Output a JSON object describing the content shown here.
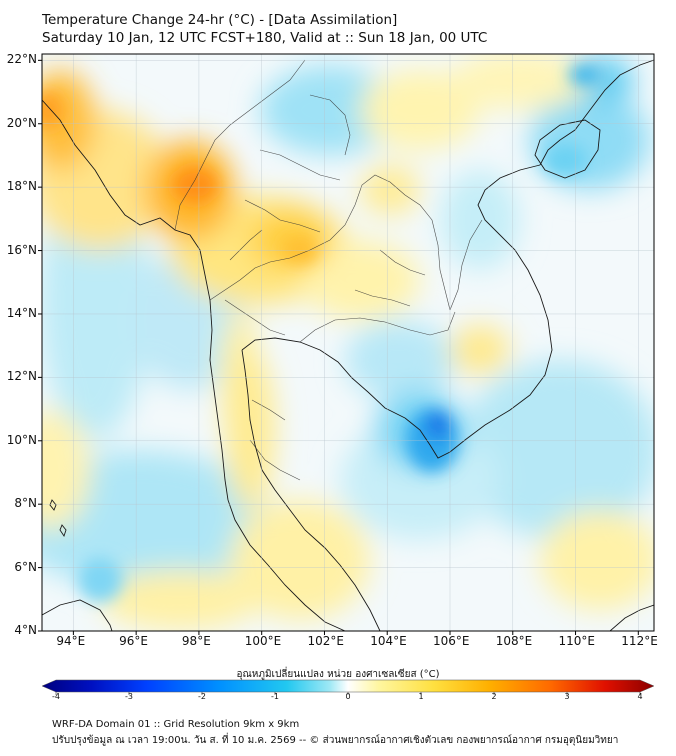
{
  "header": {
    "title_line1": "Temperature Change 24-hr (°C) - [Data Assimilation]",
    "title_line2": "Saturday 10 Jan, 12 UTC FCST+180, Valid at :: Sun 18 Jan, 00 UTC"
  },
  "map": {
    "lat_labels": [
      "22°N",
      "20°N",
      "18°N",
      "16°N",
      "14°N",
      "12°N",
      "10°N",
      "8°N",
      "6°N",
      "4°N"
    ],
    "lon_labels": [
      "94°E",
      "96°E",
      "98°E",
      "100°E",
      "102°E",
      "104°E",
      "106°E",
      "108°E",
      "110°E",
      "112°E"
    ],
    "extent": {
      "lon": [
        93,
        112.5
      ],
      "lat": [
        4,
        22.2
      ]
    }
  },
  "colorbar": {
    "title": "อุณหภูมิเปลี่ยนแปลง หน่วย องศาเซลเซียส (°C)",
    "ticks": [
      "-4",
      "-3",
      "-2",
      "-1",
      "0",
      "1",
      "2",
      "3",
      "4"
    ],
    "range": [
      -4,
      4
    ],
    "colors": [
      "#00007f",
      "#0010c0",
      "#0040ff",
      "#0090ff",
      "#22c8f0",
      "#9ee8f5",
      "#ffffff",
      "#fff6a0",
      "#ffe040",
      "#ffb000",
      "#ff6a00",
      "#e01000",
      "#8b0000"
    ]
  },
  "footer": {
    "line1": "WRF-DA Domain 01 :: Grid Resolution 9km x 9km",
    "line2": "ปรับปรุงข้อมูล ณ เวลา 19:00น. วัน ส. ที่ 10 ม.ค. 2569 -- © ส่วนพยากรณ์อากาศเชิงตัวเลข กองพยากรณ์อากาศ กรมอุตุนิยมวิทยา"
  }
}
